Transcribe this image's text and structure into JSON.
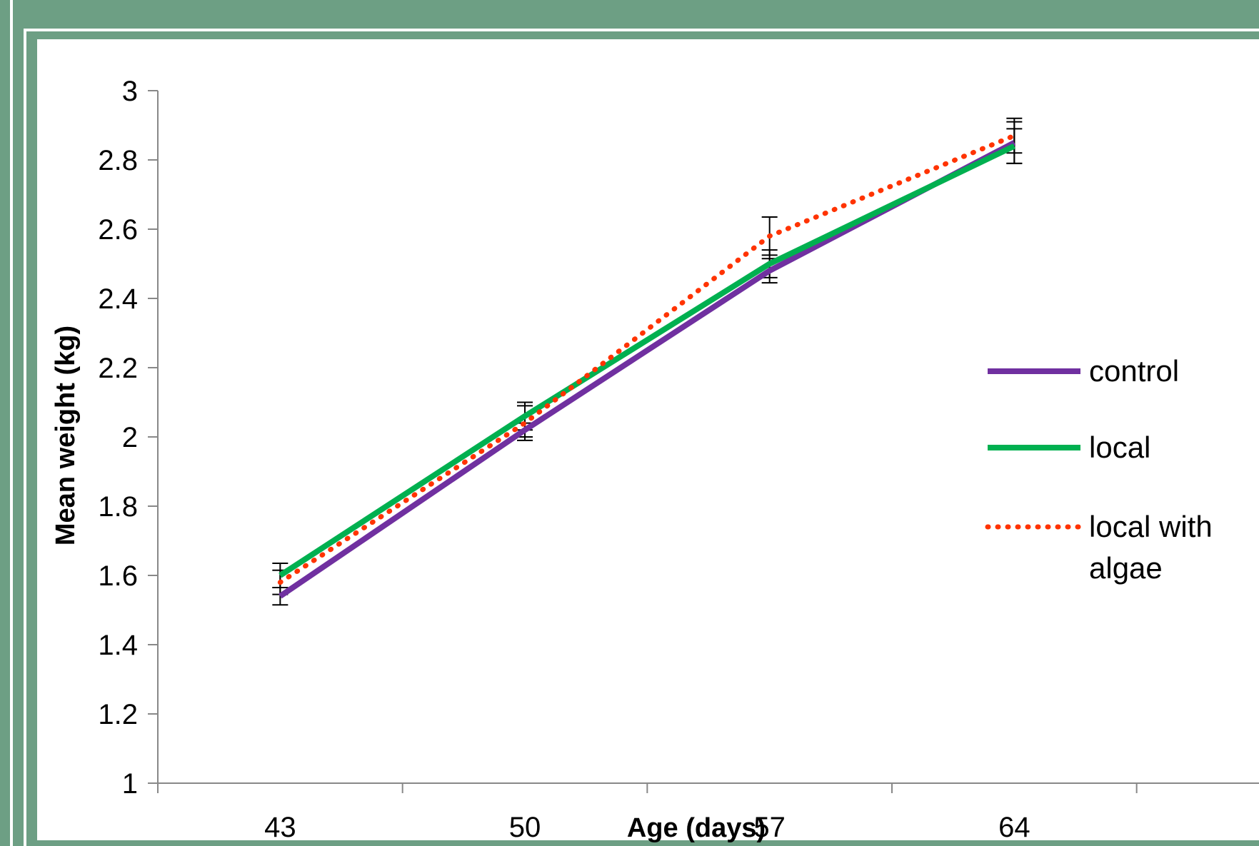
{
  "chart_data": {
    "type": "line",
    "categories": [
      "43",
      "50",
      "57",
      "64"
    ],
    "xlabel": "Age (days)",
    "ylabel": "Mean weight (kg)",
    "ylim": [
      1,
      3
    ],
    "yticks": [
      "1",
      "1.2",
      "1.4",
      "1.6",
      "1.8",
      "2",
      "2.2",
      "2.4",
      "2.6",
      "2.8",
      "3"
    ],
    "grid": false,
    "legend_position": "right",
    "series": [
      {
        "name": "control",
        "color": "#7030a0",
        "style": "solid",
        "values": [
          1.54,
          2.02,
          2.48,
          2.85
        ],
        "errors": [
          0.025,
          0.02,
          0.035,
          0.06
        ]
      },
      {
        "name": "local",
        "color": "#00b050",
        "style": "solid",
        "values": [
          1.6,
          2.06,
          2.5,
          2.84
        ],
        "errors": [
          0.035,
          0.04,
          0.04,
          0.05
        ]
      },
      {
        "name": "local with algae",
        "color": "#ff3300",
        "style": "dotted",
        "values": [
          1.58,
          2.04,
          2.58,
          2.87
        ],
        "errors": [
          0.035,
          0.05,
          0.055,
          0.05
        ]
      }
    ]
  }
}
